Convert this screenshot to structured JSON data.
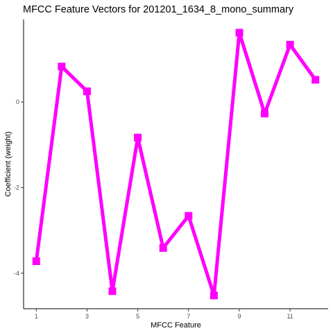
{
  "chart_data": {
    "type": "line",
    "title": "MFCC Feature Vectors for 201201_1634_8_mono_summary",
    "xlabel": "MFCC Feature",
    "ylabel": "Coefficient (weight)",
    "x": [
      1,
      2,
      3,
      4,
      5,
      6,
      7,
      8,
      9,
      10,
      11,
      12
    ],
    "values": [
      -3.72,
      0.83,
      0.25,
      -4.42,
      -0.83,
      -3.41,
      -2.66,
      -4.52,
      1.62,
      -0.27,
      1.34,
      0.52
    ],
    "xlim": [
      0.5,
      12.5
    ],
    "ylim": [
      -4.83,
      1.93
    ],
    "xticks": [
      1,
      3,
      5,
      7,
      9,
      11
    ],
    "yticks": [
      0,
      -2,
      -4
    ],
    "colors": {
      "series": "#ff00ff",
      "axis": "#000000",
      "tick_text": "#4d4d4d"
    },
    "marker": "square",
    "grid": false,
    "legend": "none"
  }
}
